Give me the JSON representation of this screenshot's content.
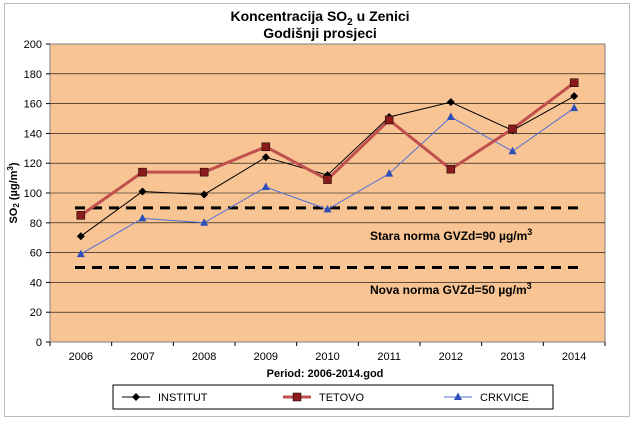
{
  "chart_data": {
    "type": "line",
    "title_line1_prefix": "Koncentracija SO",
    "title_line1_sub": "2",
    "title_line1_suffix": " u Zenici",
    "title_line2": "Godišnji  prosjeci",
    "ylabel_prefix": "SO",
    "ylabel_sub": "2",
    "ylabel_suffix": " (µg/m",
    "ylabel_sup": "3",
    "ylabel_close": ")",
    "xlabel": "Period: 2006-2014.god",
    "ylim": [
      0,
      200
    ],
    "yticks": [
      0,
      20,
      40,
      60,
      80,
      100,
      120,
      140,
      160,
      180,
      200
    ],
    "categories": [
      "2006",
      "2007",
      "2008",
      "2009",
      "2010",
      "2011",
      "2012",
      "2013",
      "2014"
    ],
    "grid": "horizontal",
    "legend_position": "bottom",
    "plot_background": "#F8C494",
    "series": [
      {
        "name": "INSTITUT",
        "color": "#000000",
        "marker": "diamond",
        "values": [
          71,
          101,
          99,
          124,
          112,
          151,
          161,
          142,
          165
        ]
      },
      {
        "name": "TETOVO",
        "color": "#C0504D",
        "marker": "square",
        "values": [
          85,
          114,
          114,
          131,
          109,
          149,
          116,
          143,
          174
        ]
      },
      {
        "name": "CRKVICE",
        "color": "#4F6FD8",
        "marker": "triangle",
        "values": [
          59,
          83,
          80,
          104,
          89,
          113,
          151,
          128,
          157
        ]
      }
    ],
    "reference_lines": [
      {
        "value": 90,
        "label_prefix": "Stara norma GVZd=90 µg/m",
        "label_sup": "3"
      },
      {
        "value": 50,
        "label_prefix": "Nova norma GVZd=50 µg/m",
        "label_sup": "3"
      }
    ]
  }
}
